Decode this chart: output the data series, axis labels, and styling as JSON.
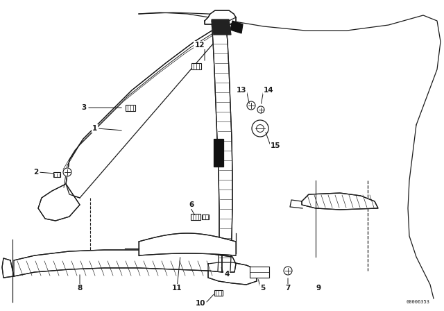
{
  "bg_color": "#ffffff",
  "line_color": "#1a1a1a",
  "catalog_number": "00006353",
  "figsize": [
    6.4,
    4.48
  ],
  "dpi": 100
}
